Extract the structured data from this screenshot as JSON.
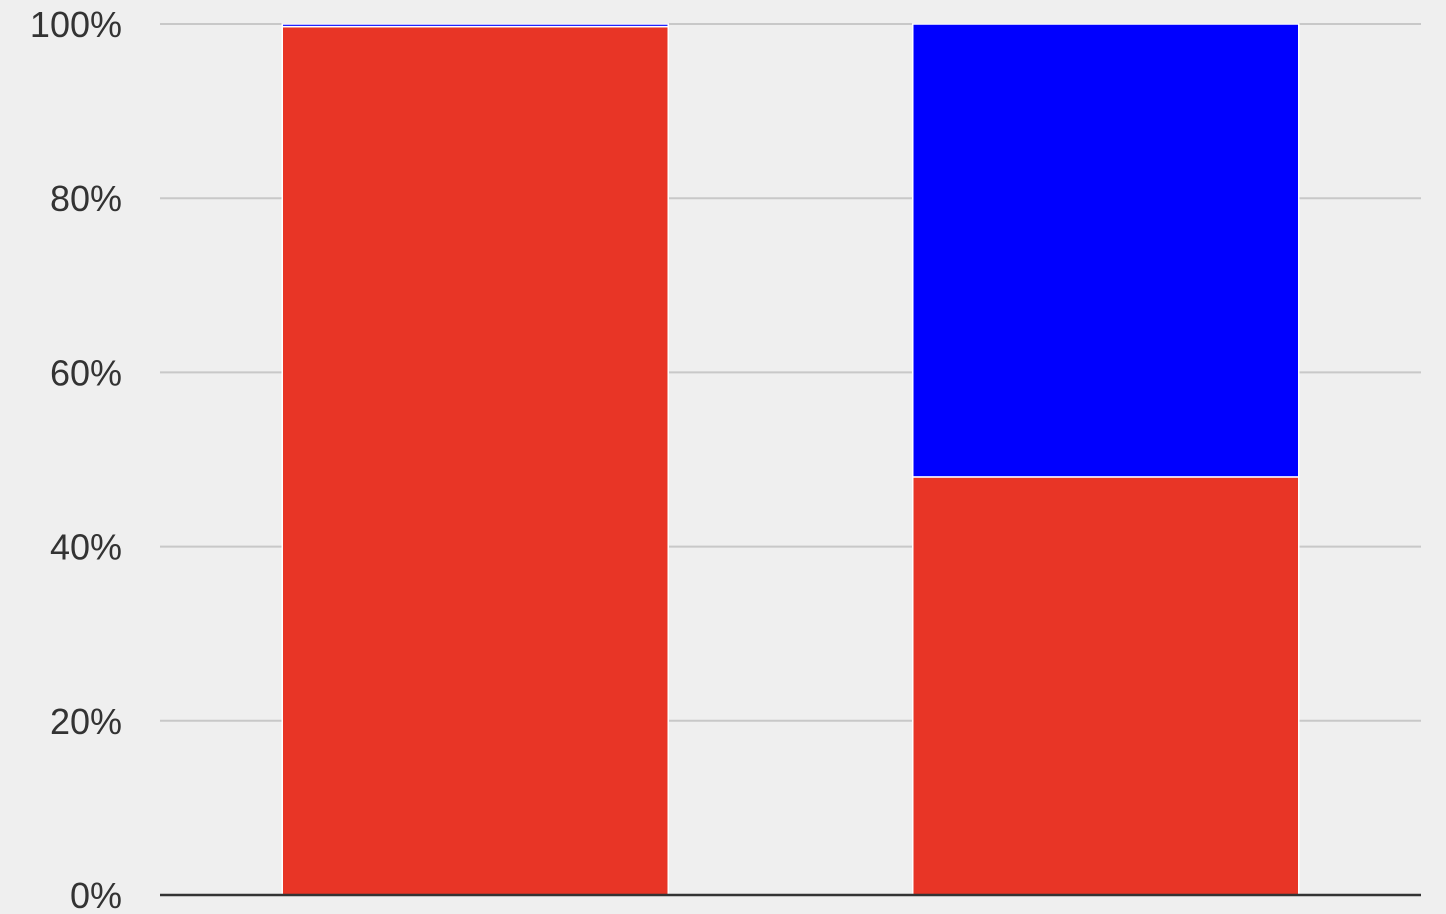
{
  "chart_data": {
    "type": "bar",
    "stacked": true,
    "normalized": true,
    "title": "",
    "xlabel": "",
    "ylabel": "",
    "categories": [
      "",
      ""
    ],
    "series": [
      {
        "values": [
          99.7,
          48.0
        ],
        "color": "#e83526"
      },
      {
        "values": [
          0.3,
          52.0
        ],
        "color": "#0000ff"
      }
    ],
    "ylim": [
      0,
      100
    ],
    "yticks": [
      0,
      20,
      40,
      60,
      80,
      100
    ],
    "ytick_labels": [
      "0%",
      "20%",
      "40%",
      "60%",
      "80%",
      "100%"
    ],
    "grid": true,
    "legend": "none"
  },
  "colors": {
    "background": "#efefef",
    "gridline": "#c8c8c8",
    "axis": "#333333",
    "segment_separator": "#ffffff"
  }
}
